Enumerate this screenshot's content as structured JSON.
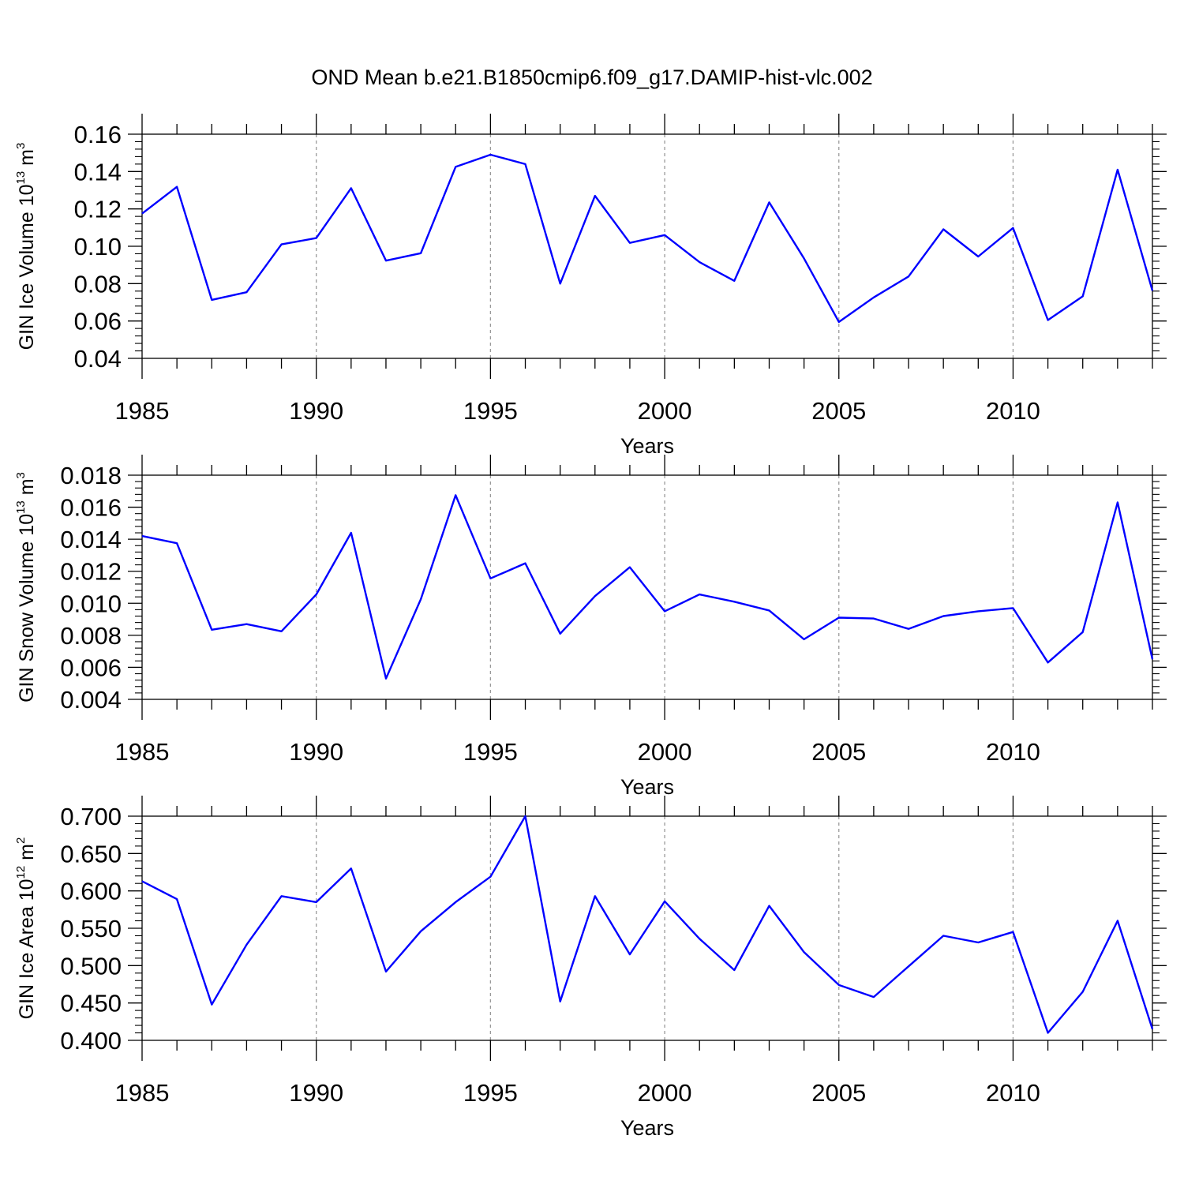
{
  "title": "OND Mean b.e21.B1850cmip6.f09_g17.DAMIP-hist-vlc.002",
  "line_color": "#0000ff",
  "chart_data": [
    {
      "type": "line",
      "ylabel": {
        "base": "GIN Ice Volume 10",
        "exp": "13",
        "unit": " m",
        "unit_exp": "3"
      },
      "xlabel": "Years",
      "xlim": [
        1985,
        2014
      ],
      "ylim": [
        0.04,
        0.16
      ],
      "yticks": [
        0.04,
        0.06,
        0.08,
        0.1,
        0.12,
        0.14,
        0.16
      ],
      "ytick_labels": [
        "0.04",
        "0.06",
        "0.08",
        "0.10",
        "0.12",
        "0.14",
        "0.16"
      ],
      "xticks": [
        1985,
        1990,
        1995,
        2000,
        2005,
        2010
      ],
      "xtick_labels": [
        "1985",
        "1990",
        "1995",
        "2000",
        "2005",
        "2010"
      ],
      "x": [
        1985,
        1986,
        1987,
        1988,
        1989,
        1990,
        1991,
        1992,
        1993,
        1994,
        1995,
        1996,
        1997,
        1998,
        1999,
        2000,
        2001,
        2002,
        2003,
        2004,
        2005,
        2006,
        2007,
        2008,
        2009,
        2010,
        2011,
        2012,
        2013,
        2014
      ],
      "y": [
        0.1175,
        0.1318,
        0.0713,
        0.0754,
        0.101,
        0.1044,
        0.1311,
        0.0923,
        0.0963,
        0.1425,
        0.149,
        0.144,
        0.08,
        0.127,
        0.1018,
        0.106,
        0.0915,
        0.0815,
        0.1235,
        0.0935,
        0.0595,
        0.0726,
        0.0838,
        0.1091,
        0.0945,
        0.1098,
        0.0605,
        0.0732,
        0.141,
        0.0762
      ]
    },
    {
      "type": "line",
      "ylabel": {
        "base": "GIN Snow Volume 10",
        "exp": "13",
        "unit": " m",
        "unit_exp": "3"
      },
      "xlabel": "Years",
      "xlim": [
        1985,
        2014
      ],
      "ylim": [
        0.004,
        0.018
      ],
      "yticks": [
        0.004,
        0.006,
        0.008,
        0.01,
        0.012,
        0.014,
        0.016,
        0.018
      ],
      "ytick_labels": [
        "0.004",
        "0.006",
        "0.008",
        "0.010",
        "0.012",
        "0.014",
        "0.016",
        "0.018"
      ],
      "xticks": [
        1985,
        1990,
        1995,
        2000,
        2005,
        2010
      ],
      "xtick_labels": [
        "1985",
        "1990",
        "1995",
        "2000",
        "2005",
        "2010"
      ],
      "x": [
        1985,
        1986,
        1987,
        1988,
        1989,
        1990,
        1991,
        1992,
        1993,
        1994,
        1995,
        1996,
        1997,
        1998,
        1999,
        2000,
        2001,
        2002,
        2003,
        2004,
        2005,
        2006,
        2007,
        2008,
        2009,
        2010,
        2011,
        2012,
        2013,
        2014
      ],
      "y": [
        0.0142,
        0.01375,
        0.00835,
        0.0087,
        0.00825,
        0.01055,
        0.0144,
        0.0053,
        0.01025,
        0.01675,
        0.01155,
        0.0125,
        0.0081,
        0.01045,
        0.01225,
        0.0095,
        0.01055,
        0.0101,
        0.00955,
        0.00775,
        0.0091,
        0.00905,
        0.0084,
        0.0092,
        0.0095,
        0.0097,
        0.0063,
        0.0082,
        0.0163,
        0.0065
      ]
    },
    {
      "type": "line",
      "ylabel": {
        "base": "GIN Ice Area 10",
        "exp": "12",
        "unit": " m",
        "unit_exp": "2"
      },
      "xlabel": "Years",
      "xlim": [
        1985,
        2014
      ],
      "ylim": [
        0.4,
        0.7
      ],
      "yticks": [
        0.4,
        0.45,
        0.5,
        0.55,
        0.6,
        0.65,
        0.7
      ],
      "ytick_labels": [
        "0.400",
        "0.450",
        "0.500",
        "0.550",
        "0.600",
        "0.650",
        "0.700"
      ],
      "xticks": [
        1985,
        1990,
        1995,
        2000,
        2005,
        2010
      ],
      "xtick_labels": [
        "1985",
        "1990",
        "1995",
        "2000",
        "2005",
        "2010"
      ],
      "x": [
        1985,
        1986,
        1987,
        1988,
        1989,
        1990,
        1991,
        1992,
        1993,
        1994,
        1995,
        1996,
        1997,
        1998,
        1999,
        2000,
        2001,
        2002,
        2003,
        2004,
        2005,
        2006,
        2007,
        2008,
        2009,
        2010,
        2011,
        2012,
        2013,
        2014
      ],
      "y": [
        0.613,
        0.589,
        0.448,
        0.528,
        0.593,
        0.585,
        0.63,
        0.492,
        0.546,
        0.585,
        0.619,
        0.7,
        0.452,
        0.593,
        0.515,
        0.586,
        0.536,
        0.494,
        0.58,
        0.518,
        0.474,
        0.458,
        0.499,
        0.54,
        0.531,
        0.545,
        0.41,
        0.465,
        0.56,
        0.415
      ]
    }
  ]
}
